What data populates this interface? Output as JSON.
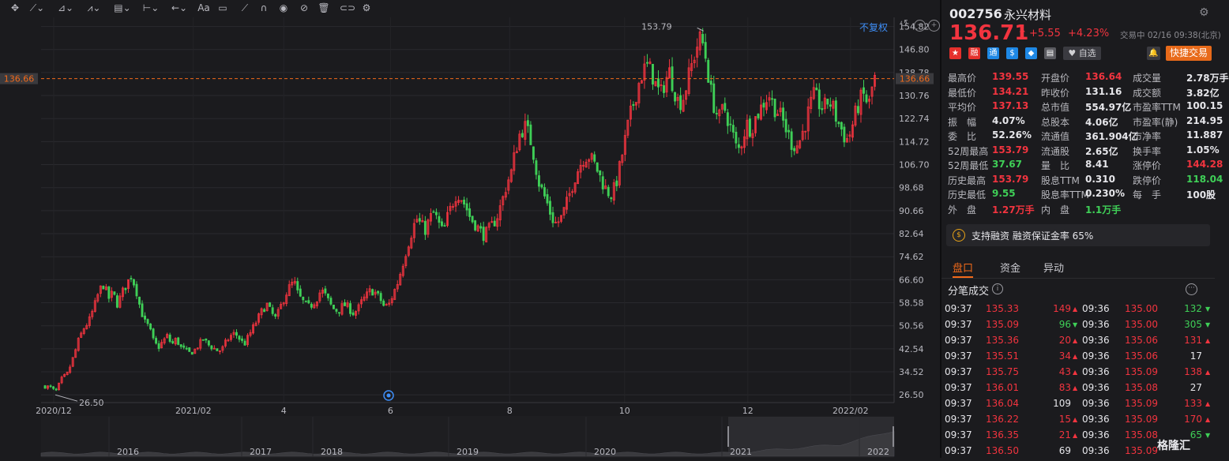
{
  "toolbar": {
    "tools": [
      "crosshair-icon",
      "trend-line-icon",
      "pencil-tool-icon",
      "wave-tool-icon",
      "fib-tool-icon",
      "measure-icon",
      "arrow-tool-icon",
      "text-tool-icon",
      "comment-icon",
      "brush-icon",
      "magnet-icon",
      "eye-icon",
      "eye-off-icon",
      "trash-icon",
      "link-icon",
      "gear-icon"
    ],
    "text_tool_label": "Aa",
    "fq_label": "不复权"
  },
  "chart_data": {
    "type": "candlestick",
    "yticks": [
      154.82,
      146.8,
      138.78,
      130.76,
      122.74,
      114.72,
      106.7,
      98.68,
      90.66,
      82.64,
      74.62,
      66.6,
      58.58,
      50.56,
      42.54,
      34.52,
      26.5
    ],
    "ytick_labels": [
      "154.82",
      "146.80",
      "138.78",
      "130.76",
      "122.74",
      "114.72",
      "106.70",
      "98.68",
      "90.66",
      "82.64",
      "74.62",
      "66.60",
      "58.58",
      "50.56",
      "42.54",
      "34.52",
      "26.50"
    ],
    "ylim": [
      23.8,
      158.0
    ],
    "xticks": [
      "2020/12",
      "2021/02",
      "4",
      "6",
      "8",
      "10",
      "12",
      "2022/02"
    ],
    "high_annotation": "153.79",
    "low_annotation": "26.50",
    "current_price_label": "136.66",
    "current_price": 136.66,
    "navigator_years": [
      "2016",
      "2017",
      "2018",
      "2019",
      "2020",
      "2021",
      "2022"
    ],
    "colors": {
      "up": "#f2343f",
      "down": "#3fcf57",
      "price_line": "#f26a1a"
    },
    "anchors": [
      [
        0,
        29.5
      ],
      [
        8,
        29
      ],
      [
        14,
        27.5
      ],
      [
        22,
        32
      ],
      [
        30,
        34
      ],
      [
        38,
        40
      ],
      [
        45,
        46
      ],
      [
        52,
        50
      ],
      [
        58,
        52
      ],
      [
        65,
        57
      ],
      [
        72,
        63
      ],
      [
        78,
        65
      ],
      [
        84,
        60
      ],
      [
        90,
        62
      ],
      [
        96,
        58
      ],
      [
        102,
        62
      ],
      [
        108,
        65
      ],
      [
        114,
        68
      ],
      [
        120,
        64
      ],
      [
        126,
        57
      ],
      [
        132,
        52
      ],
      [
        138,
        50
      ],
      [
        144,
        45
      ],
      [
        150,
        43
      ],
      [
        156,
        45
      ],
      [
        162,
        47
      ],
      [
        168,
        44
      ],
      [
        174,
        46
      ],
      [
        180,
        43
      ],
      [
        186,
        42
      ],
      [
        192,
        41
      ],
      [
        198,
        42
      ],
      [
        204,
        44
      ],
      [
        210,
        46
      ],
      [
        216,
        44
      ],
      [
        222,
        43
      ],
      [
        228,
        42
      ],
      [
        234,
        42
      ],
      [
        240,
        45
      ],
      [
        246,
        47
      ],
      [
        252,
        48
      ],
      [
        258,
        46
      ],
      [
        264,
        44
      ],
      [
        270,
        47
      ],
      [
        276,
        50
      ],
      [
        282,
        53
      ],
      [
        288,
        56
      ],
      [
        294,
        58
      ],
      [
        300,
        55
      ],
      [
        306,
        53
      ],
      [
        312,
        57
      ],
      [
        318,
        61
      ],
      [
        324,
        64
      ],
      [
        330,
        66
      ],
      [
        336,
        61
      ],
      [
        342,
        59
      ],
      [
        348,
        57
      ],
      [
        354,
        58
      ],
      [
        360,
        60
      ],
      [
        366,
        63
      ],
      [
        372,
        61
      ],
      [
        378,
        58
      ],
      [
        384,
        56
      ],
      [
        390,
        56
      ],
      [
        396,
        58
      ],
      [
        402,
        57
      ],
      [
        408,
        55
      ],
      [
        414,
        56
      ],
      [
        420,
        59
      ],
      [
        426,
        61
      ],
      [
        432,
        63
      ],
      [
        438,
        62
      ],
      [
        444,
        60
      ],
      [
        450,
        57
      ],
      [
        456,
        58
      ],
      [
        462,
        62
      ],
      [
        468,
        66
      ],
      [
        474,
        72
      ],
      [
        480,
        78
      ],
      [
        486,
        83
      ],
      [
        492,
        88
      ],
      [
        498,
        86
      ],
      [
        504,
        84
      ],
      [
        510,
        88
      ],
      [
        516,
        90
      ],
      [
        522,
        86
      ],
      [
        528,
        83
      ],
      [
        534,
        89
      ],
      [
        540,
        93
      ],
      [
        546,
        97
      ],
      [
        552,
        95
      ],
      [
        558,
        92
      ],
      [
        564,
        88
      ],
      [
        570,
        86
      ],
      [
        576,
        84
      ],
      [
        582,
        82
      ],
      [
        588,
        84
      ],
      [
        594,
        86
      ],
      [
        600,
        89
      ],
      [
        606,
        94
      ],
      [
        612,
        100
      ],
      [
        618,
        104
      ],
      [
        624,
        112
      ],
      [
        630,
        118
      ],
      [
        636,
        120
      ],
      [
        642,
        117
      ],
      [
        648,
        110
      ],
      [
        654,
        101
      ],
      [
        660,
        97
      ],
      [
        666,
        93
      ],
      [
        672,
        88
      ],
      [
        678,
        86
      ],
      [
        684,
        88
      ],
      [
        690,
        92
      ],
      [
        696,
        97
      ],
      [
        702,
        102
      ],
      [
        708,
        106
      ],
      [
        714,
        109
      ],
      [
        720,
        110
      ],
      [
        726,
        108
      ],
      [
        732,
        105
      ],
      [
        738,
        101
      ],
      [
        744,
        98
      ],
      [
        750,
        96
      ],
      [
        756,
        99
      ],
      [
        762,
        106
      ],
      [
        768,
        114
      ],
      [
        774,
        122
      ],
      [
        780,
        128
      ],
      [
        786,
        134
      ],
      [
        792,
        139
      ],
      [
        798,
        141
      ],
      [
        804,
        139
      ],
      [
        810,
        134
      ],
      [
        816,
        131
      ],
      [
        822,
        136
      ],
      [
        828,
        139
      ],
      [
        834,
        133
      ],
      [
        840,
        128
      ],
      [
        846,
        130
      ],
      [
        852,
        136
      ],
      [
        858,
        142
      ],
      [
        864,
        148
      ],
      [
        870,
        151
      ],
      [
        876,
        144
      ],
      [
        882,
        133
      ],
      [
        888,
        126
      ],
      [
        894,
        123
      ],
      [
        900,
        127
      ],
      [
        906,
        122
      ],
      [
        912,
        117
      ],
      [
        918,
        111
      ],
      [
        924,
        115
      ],
      [
        930,
        121
      ],
      [
        936,
        119
      ],
      [
        942,
        123
      ],
      [
        948,
        126
      ],
      [
        954,
        129
      ],
      [
        960,
        131
      ],
      [
        966,
        127
      ],
      [
        972,
        125
      ],
      [
        978,
        122
      ],
      [
        984,
        118
      ],
      [
        990,
        114
      ],
      [
        996,
        113
      ],
      [
        1002,
        116
      ],
      [
        1008,
        121
      ],
      [
        1014,
        127
      ],
      [
        1020,
        131
      ],
      [
        1026,
        128
      ],
      [
        1032,
        126
      ],
      [
        1038,
        129
      ],
      [
        1044,
        127
      ],
      [
        1050,
        122
      ],
      [
        1056,
        119
      ],
      [
        1062,
        115
      ],
      [
        1068,
        118
      ],
      [
        1074,
        124
      ],
      [
        1080,
        129
      ],
      [
        1086,
        131
      ],
      [
        1092,
        127
      ],
      [
        1096,
        133
      ],
      [
        1100,
        136.7
      ]
    ]
  },
  "quote": {
    "code": "002756",
    "name": "永兴材料",
    "price": "136.71",
    "change": "+5.55",
    "pct": "+4.23%",
    "status": "交易中 02/16 09:38(北京)",
    "zixuan": "自选",
    "quick_trade": "快捷交易",
    "icons": [
      {
        "name": "cn-flag-icon",
        "color": "#e5302c",
        "glyph": "★"
      },
      {
        "name": "margin-icon",
        "color": "#e5302c",
        "glyph": "融"
      },
      {
        "name": "hk-connect-icon",
        "color": "#1e88e5",
        "glyph": "通"
      },
      {
        "name": "dollar-icon",
        "color": "#1e88e5",
        "glyph": "$"
      },
      {
        "name": "tag-icon",
        "color": "#1e88e5",
        "glyph": "◆"
      },
      {
        "name": "doc-icon",
        "color": "#5a5a60",
        "glyph": "▤"
      }
    ]
  },
  "stats": [
    [
      {
        "label": "最高价",
        "value": "139.55",
        "color": "red"
      },
      {
        "label": "开盘价",
        "value": "136.64",
        "color": "red"
      },
      {
        "label": "成交量",
        "value": "2.78万手",
        "color": "white"
      }
    ],
    [
      {
        "label": "最低价",
        "value": "134.21",
        "color": "red"
      },
      {
        "label": "昨收价",
        "value": "131.16",
        "color": "white"
      },
      {
        "label": "成交额",
        "value": "3.82亿",
        "color": "white"
      }
    ],
    [
      {
        "label": "平均价",
        "value": "137.13",
        "color": "red"
      },
      {
        "label": "总市值",
        "value": "554.97亿",
        "color": "white"
      },
      {
        "label": "市盈率TTM",
        "value": "100.15",
        "color": "white"
      }
    ],
    [
      {
        "label": "振　幅",
        "value": "4.07%",
        "color": "white"
      },
      {
        "label": "总股本",
        "value": "4.06亿",
        "color": "white"
      },
      {
        "label": "市盈率(静)",
        "value": "214.95",
        "color": "white"
      }
    ],
    [
      {
        "label": "委　比",
        "value": "52.26%",
        "color": "white"
      },
      {
        "label": "流通值",
        "value": "361.904亿",
        "color": "white"
      },
      {
        "label": "市净率",
        "value": "11.887",
        "color": "white"
      }
    ],
    [
      {
        "label": "52周最高",
        "value": "153.79",
        "color": "red"
      },
      {
        "label": "流通股",
        "value": "2.65亿",
        "color": "white"
      },
      {
        "label": "换手率",
        "value": "1.05%",
        "color": "white"
      }
    ],
    [
      {
        "label": "52周最低",
        "value": "37.67",
        "color": "green"
      },
      {
        "label": "量　比",
        "value": "8.41",
        "color": "white"
      },
      {
        "label": "涨停价",
        "value": "144.28",
        "color": "red"
      }
    ],
    [
      {
        "label": "历史最高",
        "value": "153.79",
        "color": "red"
      },
      {
        "label": "股息TTM",
        "value": "0.310",
        "color": "white"
      },
      {
        "label": "跌停价",
        "value": "118.04",
        "color": "green"
      }
    ],
    [
      {
        "label": "历史最低",
        "value": "9.55",
        "color": "green"
      },
      {
        "label": "股息率TTM",
        "value": "0.230%",
        "color": "white"
      },
      {
        "label": "每　手",
        "value": "100股",
        "color": "white"
      }
    ],
    [
      {
        "label": "外　盘",
        "value": "1.27万手",
        "color": "red"
      },
      {
        "label": "内　盘",
        "value": "1.1万手",
        "color": "green"
      },
      {
        "label": "",
        "value": "",
        "color": "white"
      }
    ]
  ],
  "margin_text": "支持融资 融资保证金率 65%",
  "tabs": [
    "盘口",
    "资金",
    "异动"
  ],
  "ticks_title": "分笔成交",
  "ticks": [
    {
      "t1": "09:37",
      "p1": "135.33",
      "v1": "149",
      "d1": "up",
      "t2": "09:36",
      "p2": "135.00",
      "v2": "132",
      "d2": "down"
    },
    {
      "t1": "09:37",
      "p1": "135.09",
      "v1": "96",
      "d1": "down",
      "t2": "09:36",
      "p2": "135.00",
      "v2": "305",
      "d2": "down"
    },
    {
      "t1": "09:37",
      "p1": "135.36",
      "v1": "20",
      "d1": "up",
      "t2": "09:36",
      "p2": "135.06",
      "v2": "131",
      "d2": "up"
    },
    {
      "t1": "09:37",
      "p1": "135.51",
      "v1": "34",
      "d1": "up",
      "t2": "09:36",
      "p2": "135.06",
      "v2": "17",
      "d2": "neutral"
    },
    {
      "t1": "09:37",
      "p1": "135.75",
      "v1": "43",
      "d1": "up",
      "t2": "09:36",
      "p2": "135.09",
      "v2": "138",
      "d2": "up"
    },
    {
      "t1": "09:37",
      "p1": "136.01",
      "v1": "83",
      "d1": "up",
      "t2": "09:36",
      "p2": "135.08",
      "v2": "27",
      "d2": "neutral"
    },
    {
      "t1": "09:37",
      "p1": "136.04",
      "v1": "109",
      "d1": "neutral",
      "t2": "09:36",
      "p2": "135.09",
      "v2": "133",
      "d2": "up"
    },
    {
      "t1": "09:37",
      "p1": "136.22",
      "v1": "15",
      "d1": "up",
      "t2": "09:36",
      "p2": "135.09",
      "v2": "170",
      "d2": "up"
    },
    {
      "t1": "09:37",
      "p1": "136.35",
      "v1": "21",
      "d1": "up",
      "t2": "09:36",
      "p2": "135.08",
      "v2": "65",
      "d2": "down"
    },
    {
      "t1": "09:37",
      "p1": "136.50",
      "v1": "69",
      "d1": "neutral",
      "t2": "09:36",
      "p2": "135.09",
      "v2": "",
      "d2": "neutral"
    }
  ],
  "watermark": "格隆汇"
}
